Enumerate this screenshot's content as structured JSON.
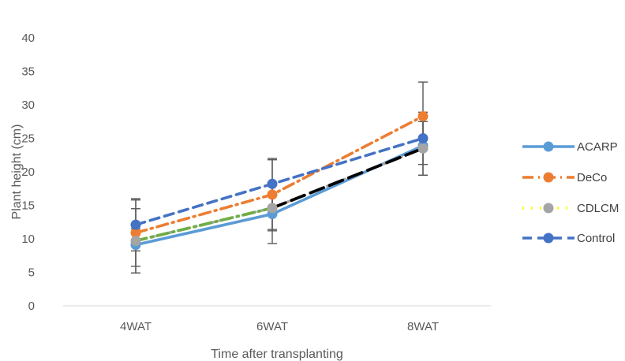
{
  "chart_data": {
    "type": "line",
    "categories": [
      "4WAT",
      "6WAT",
      "8WAT"
    ],
    "xlabel": "Time after transplanting",
    "ylabel": "Plant height (cm)",
    "ylim": [
      0,
      40
    ],
    "yticks": [
      0,
      5,
      10,
      15,
      20,
      25,
      30,
      35,
      40
    ],
    "grid": false,
    "legend_position": "right",
    "series": [
      {
        "name": "ACARP",
        "values": [
          9.1,
          13.7,
          23.9
        ],
        "color": "#5b9bd5",
        "dash": "solid",
        "error": [
          [
            4.2,
            2.4
          ],
          [
            4.4,
            4.4
          ],
          [
            4.4,
            4.4
          ]
        ]
      },
      {
        "name": "DeCo",
        "values": [
          10.9,
          16.6,
          28.3
        ],
        "color": "#ed7d31",
        "dash": "dashdot",
        "error": [
          [
            5.0,
            4.9
          ],
          [
            5.2,
            5.2
          ],
          [
            5.1,
            5.1
          ]
        ]
      },
      {
        "name": "CDLCM",
        "values": [
          9.7,
          14.6,
          23.5
        ],
        "color": "#a5a5a5",
        "dash": "dot",
        "error": [
          [
            4.8,
            4.8
          ],
          [
            3.4,
            3.4
          ],
          [
            4.0,
            4.0
          ]
        ]
      },
      {
        "name": "Control",
        "values": [
          12.1,
          18.2,
          25.0
        ],
        "color": "#4472c4",
        "dash": "dash",
        "error": [
          [
            3.9,
            3.9
          ],
          [
            3.8,
            3.8
          ],
          [
            3.9,
            3.9
          ]
        ]
      }
    ],
    "segment_overlays": [
      {
        "from_index": 0,
        "to_index": 1,
        "color": "#70ad47",
        "dash": "dashdot"
      },
      {
        "from_index": 1,
        "to_index": 2,
        "color": "#000000",
        "dash": "longdash"
      }
    ]
  }
}
